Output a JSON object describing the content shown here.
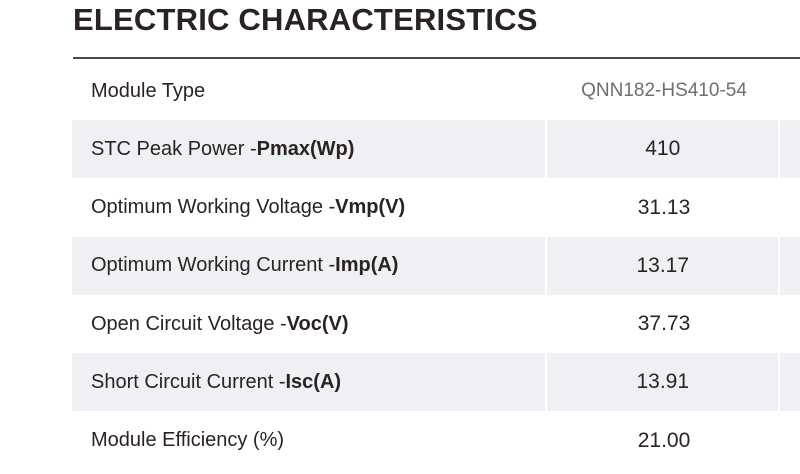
{
  "title": "ELECTRIC CHARACTERISTICS",
  "header": {
    "label": "Module Type",
    "value": "QNN182-HS410-54"
  },
  "rows": [
    {
      "label": "STC Peak Power - ",
      "bold": "Pmax(Wp)",
      "value": "410"
    },
    {
      "label": "Optimum Working Voltage - ",
      "bold": "Vmp(V)",
      "value": "31.13"
    },
    {
      "label": "Optimum Working Current - ",
      "bold": "Imp(A)",
      "value": "13.17"
    },
    {
      "label": "Open Circuit Voltage - ",
      "bold": "Voc(V)",
      "value": "37.73"
    },
    {
      "label": "Short Circuit Current - ",
      "bold": "Isc(A)",
      "value": "13.91"
    },
    {
      "label": "Module Efficiency (%)",
      "bold": "",
      "value": "21.00"
    }
  ],
  "colors": {
    "text": "#2b2322",
    "shade": "#eff0f3",
    "header_value": "#6e6e6e"
  }
}
